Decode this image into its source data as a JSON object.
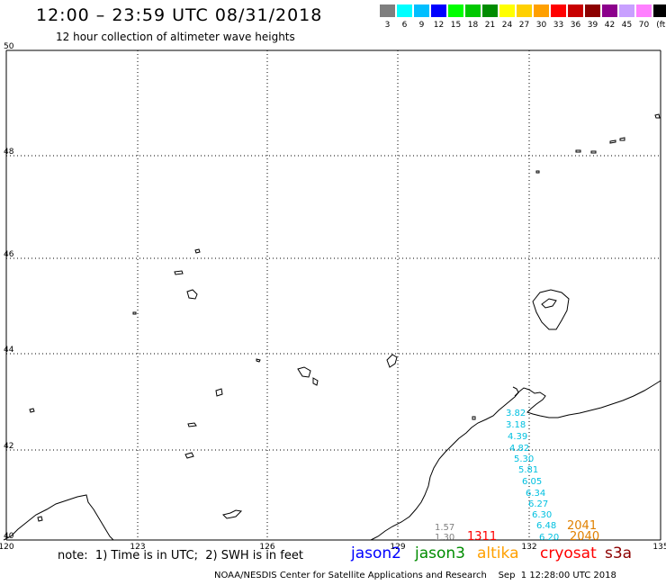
{
  "title": "12:00 – 23:59 UTC 08/31/2018",
  "subtitle": "12 hour collection of altimeter wave heights",
  "color_scale": {
    "unit": "(ft)",
    "steps": [
      {
        "label": "3",
        "color": "#7f7f7f"
      },
      {
        "label": "6",
        "color": "#00ffff"
      },
      {
        "label": "9",
        "color": "#00bfff"
      },
      {
        "label": "12",
        "color": "#0000ff"
      },
      {
        "label": "15",
        "color": "#00ff00"
      },
      {
        "label": "18",
        "color": "#00c800"
      },
      {
        "label": "21",
        "color": "#008c00"
      },
      {
        "label": "24",
        "color": "#ffff00"
      },
      {
        "label": "27",
        "color": "#ffd000"
      },
      {
        "label": "30",
        "color": "#ffa000"
      },
      {
        "label": "33",
        "color": "#ff0000"
      },
      {
        "label": "36",
        "color": "#c80000"
      },
      {
        "label": "39",
        "color": "#8c0000"
      },
      {
        "label": "42",
        "color": "#8c008c"
      },
      {
        "label": "45",
        "color": "#c8a0ff"
      },
      {
        "label": "70",
        "color": "#ff80ff"
      },
      {
        "label": "",
        "color": "#000000"
      }
    ]
  },
  "axes": {
    "x_labels": [
      "120",
      "123",
      "126",
      "129",
      "132",
      "135"
    ],
    "y_labels": [
      "50",
      "48",
      "46",
      "44",
      "42",
      "40"
    ]
  },
  "observations": [
    {
      "text": "3.82",
      "color": "#00c0e0"
    },
    {
      "text": "3.18",
      "color": "#00c0e0"
    },
    {
      "text": "4.39",
      "color": "#00c0e0"
    },
    {
      "text": "4.82",
      "color": "#00c0e0"
    },
    {
      "text": "5.30",
      "color": "#00c0e0"
    },
    {
      "text": "5.81",
      "color": "#00c0e0"
    },
    {
      "text": "6.05",
      "color": "#00c0e0"
    },
    {
      "text": "6.34",
      "color": "#00c0e0"
    },
    {
      "text": "6.27",
      "color": "#00c0e0"
    },
    {
      "text": "6.30",
      "color": "#00c0e0"
    },
    {
      "text": "6.48",
      "color": "#00c0e0"
    },
    {
      "text": "6.20",
      "color": "#00c0e0"
    },
    {
      "text": "1.57",
      "color": "#808080"
    },
    {
      "text": "1.30",
      "color": "#808080"
    }
  ],
  "times": [
    {
      "text": "1311",
      "color": "#ff0000"
    },
    {
      "text": "2041",
      "color": "#e08000"
    },
    {
      "text": "2040",
      "color": "#e08000"
    }
  ],
  "note": "note:  1) Time is in UTC;  2) SWH is in feet",
  "satellites": [
    {
      "name": "jason2",
      "color": "#0000ff"
    },
    {
      "name": "jason3",
      "color": "#008c00"
    },
    {
      "name": "altika",
      "color": "#ffa000"
    },
    {
      "name": "cryosat",
      "color": "#ff0000"
    },
    {
      "name": "s3a",
      "color": "#8c0000"
    }
  ],
  "footer": "NOAA/NESDIS Center for Satellite Applications and Research    Sep  1 12:28:00 UTC 2018"
}
